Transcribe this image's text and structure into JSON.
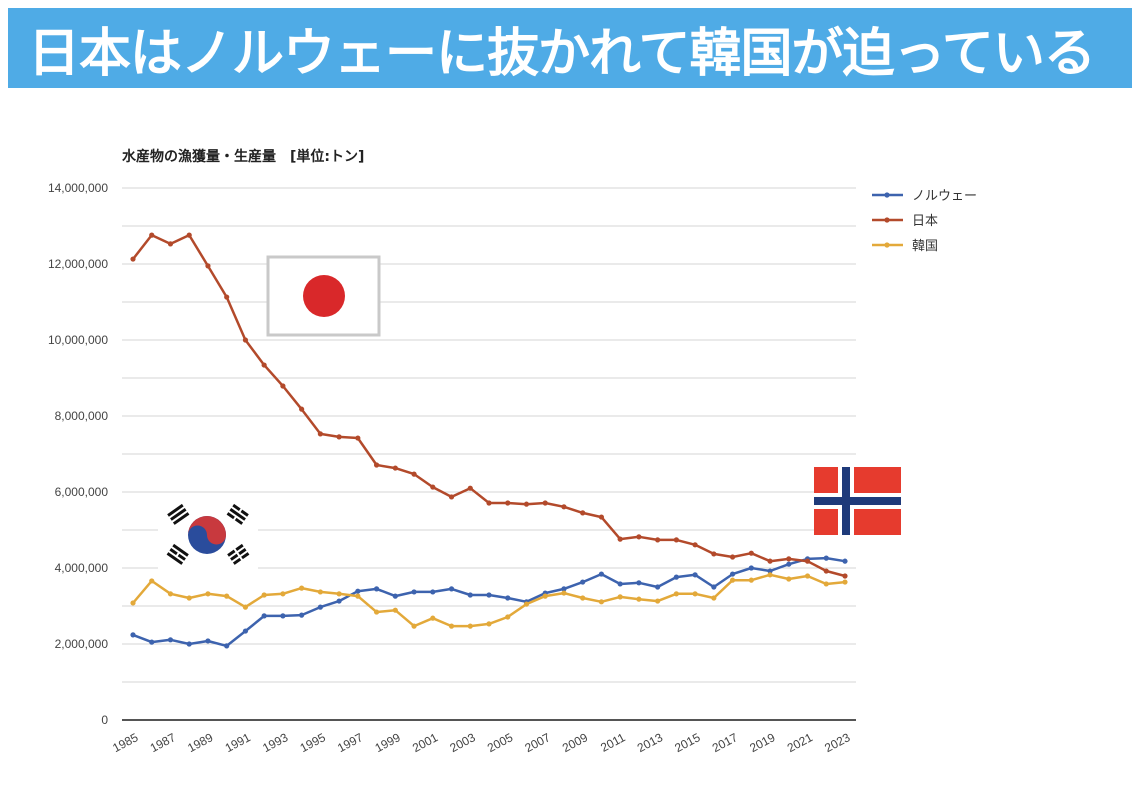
{
  "banner": {
    "title": "日本はノルウェーに抜かれて韓国が迫っている",
    "background": "#4fabe6"
  },
  "chart_data": {
    "type": "line",
    "title": "水産物の漁獲量・生産量　[単位:トン]",
    "xlabel": "",
    "ylabel": "",
    "ylim": [
      0,
      14000000
    ],
    "yticks": [
      0,
      2000000,
      4000000,
      6000000,
      8000000,
      10000000,
      12000000,
      14000000
    ],
    "ytick_labels": [
      "0",
      "2,000,000",
      "4,000,000",
      "6,000,000",
      "8,000,000",
      "10,000,000",
      "12,000,000",
      "14,000,000"
    ],
    "minor_grid_step": 1000000,
    "grid": true,
    "legend_position": "right",
    "x": [
      1985,
      1986,
      1987,
      1988,
      1989,
      1990,
      1991,
      1992,
      1993,
      1994,
      1995,
      1996,
      1997,
      1998,
      1999,
      2000,
      2001,
      2002,
      2003,
      2004,
      2005,
      2006,
      2007,
      2008,
      2009,
      2010,
      2011,
      2012,
      2013,
      2014,
      2015,
      2016,
      2017,
      2018,
      2019,
      2020,
      2021,
      2022,
      2023
    ],
    "xtick_labels": [
      "1985",
      "1987",
      "1989",
      "1991",
      "1993",
      "1995",
      "1997",
      "1999",
      "2001",
      "2003",
      "2005",
      "2007",
      "2009",
      "2011",
      "2013",
      "2015",
      "2017",
      "2019",
      "2021",
      "2023"
    ],
    "series": [
      {
        "name": "ノルウェー",
        "color": "#3d63ae",
        "values": [
          2240000,
          2050000,
          2110000,
          2000000,
          2080000,
          1950000,
          2340000,
          2740000,
          2740000,
          2760000,
          2970000,
          3130000,
          3390000,
          3450000,
          3260000,
          3370000,
          3370000,
          3450000,
          3290000,
          3290000,
          3210000,
          3110000,
          3340000,
          3450000,
          3630000,
          3840000,
          3580000,
          3610000,
          3500000,
          3760000,
          3820000,
          3500000,
          3840000,
          4000000,
          3920000,
          4100000,
          4240000,
          4260000,
          4180000
        ]
      },
      {
        "name": "日本",
        "color": "#b34a2b",
        "values": [
          12130000,
          12760000,
          12530000,
          12760000,
          11950000,
          11130000,
          10000000,
          9340000,
          8790000,
          8180000,
          7530000,
          7450000,
          7420000,
          6710000,
          6630000,
          6470000,
          6130000,
          5870000,
          6100000,
          5710000,
          5710000,
          5680000,
          5710000,
          5610000,
          5450000,
          5340000,
          4760000,
          4820000,
          4740000,
          4740000,
          4610000,
          4370000,
          4290000,
          4390000,
          4180000,
          4240000,
          4180000,
          3920000,
          3790000
        ]
      },
      {
        "name": "韓国",
        "color": "#e3a93a",
        "values": [
          3080000,
          3660000,
          3320000,
          3210000,
          3320000,
          3260000,
          2970000,
          3290000,
          3320000,
          3470000,
          3370000,
          3320000,
          3260000,
          2840000,
          2890000,
          2470000,
          2680000,
          2470000,
          2470000,
          2530000,
          2710000,
          3050000,
          3260000,
          3340000,
          3210000,
          3110000,
          3240000,
          3180000,
          3130000,
          3320000,
          3320000,
          3210000,
          3680000,
          3680000,
          3820000,
          3710000,
          3790000,
          3580000,
          3630000
        ]
      }
    ],
    "annotations": [
      {
        "type": "flag",
        "country": "日本"
      },
      {
        "type": "flag",
        "country": "韓国"
      },
      {
        "type": "flag",
        "country": "ノルウェー"
      }
    ]
  },
  "flags": {
    "japan": {
      "field": "#ffffff",
      "disc": "#d9282a"
    },
    "korea": {
      "red": "#c8393e",
      "blue": "#2a4c9c",
      "bars": "#111111"
    },
    "norway": {
      "red": "#e63b2e",
      "white": "#ffffff",
      "blue": "#1e3a7a"
    }
  }
}
